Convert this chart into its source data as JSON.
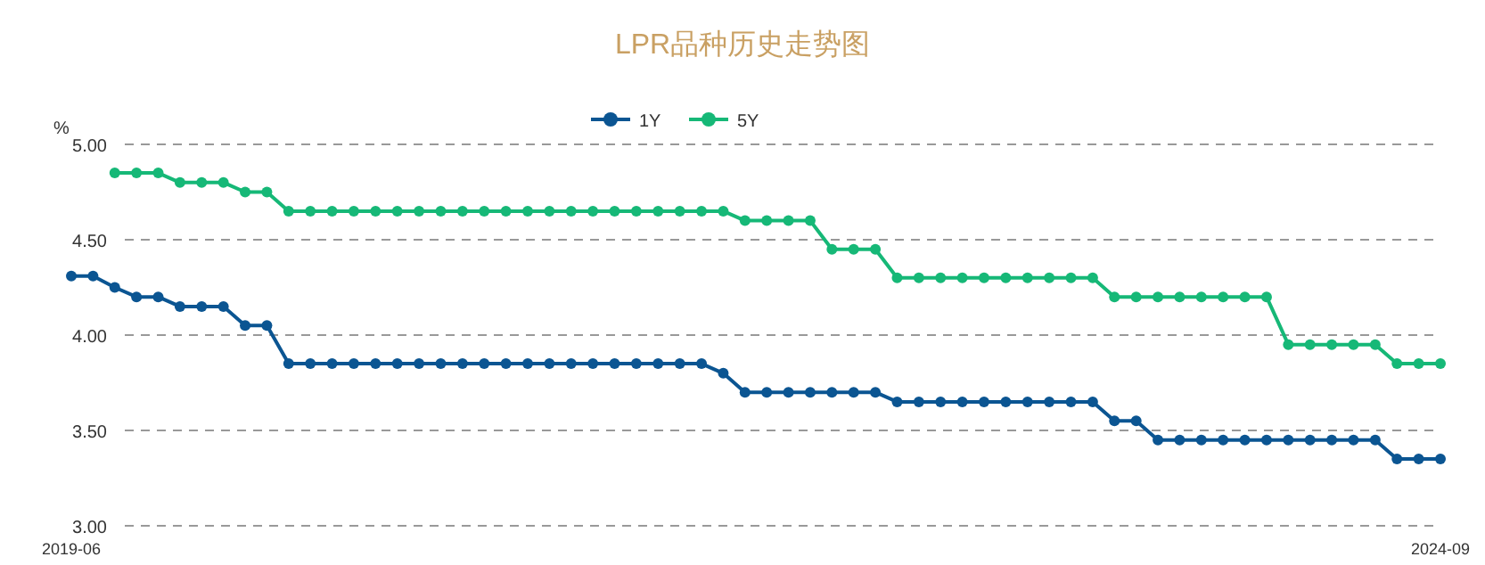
{
  "chart_data": {
    "type": "line",
    "title": "LPR品种历史走势图",
    "ylabel": "%",
    "x": [
      "2019-06",
      "2019-07",
      "2019-08",
      "2019-09",
      "2019-10",
      "2019-11",
      "2019-12",
      "2020-01",
      "2020-02",
      "2020-03",
      "2020-04",
      "2020-05",
      "2020-06",
      "2020-07",
      "2020-08",
      "2020-09",
      "2020-10",
      "2020-11",
      "2020-12",
      "2021-01",
      "2021-02",
      "2021-03",
      "2021-04",
      "2021-05",
      "2021-06",
      "2021-07",
      "2021-08",
      "2021-09",
      "2021-10",
      "2021-11",
      "2021-12",
      "2022-01",
      "2022-02",
      "2022-03",
      "2022-04",
      "2022-05",
      "2022-06",
      "2022-07",
      "2022-08",
      "2022-09",
      "2022-10",
      "2022-11",
      "2022-12",
      "2023-01",
      "2023-02",
      "2023-03",
      "2023-04",
      "2023-05",
      "2023-06",
      "2023-07",
      "2023-08",
      "2023-09",
      "2023-10",
      "2023-11",
      "2023-12",
      "2024-01",
      "2024-02",
      "2024-03",
      "2024-04",
      "2024-05",
      "2024-06",
      "2024-07",
      "2024-08",
      "2024-09"
    ],
    "series": [
      {
        "name": "1Y",
        "color": "#0b5592",
        "values": [
          4.31,
          4.31,
          4.25,
          4.2,
          4.2,
          4.15,
          4.15,
          4.15,
          4.05,
          4.05,
          3.85,
          3.85,
          3.85,
          3.85,
          3.85,
          3.85,
          3.85,
          3.85,
          3.85,
          3.85,
          3.85,
          3.85,
          3.85,
          3.85,
          3.85,
          3.85,
          3.85,
          3.85,
          3.85,
          3.85,
          3.8,
          3.7,
          3.7,
          3.7,
          3.7,
          3.7,
          3.7,
          3.7,
          3.65,
          3.65,
          3.65,
          3.65,
          3.65,
          3.65,
          3.65,
          3.65,
          3.65,
          3.65,
          3.55,
          3.55,
          3.45,
          3.45,
          3.45,
          3.45,
          3.45,
          3.45,
          3.45,
          3.45,
          3.45,
          3.45,
          3.45,
          3.35,
          3.35,
          3.35
        ]
      },
      {
        "name": "5Y",
        "color": "#16b877",
        "values": [
          null,
          null,
          4.85,
          4.85,
          4.85,
          4.8,
          4.8,
          4.8,
          4.75,
          4.75,
          4.65,
          4.65,
          4.65,
          4.65,
          4.65,
          4.65,
          4.65,
          4.65,
          4.65,
          4.65,
          4.65,
          4.65,
          4.65,
          4.65,
          4.65,
          4.65,
          4.65,
          4.65,
          4.65,
          4.65,
          4.65,
          4.6,
          4.6,
          4.6,
          4.6,
          4.45,
          4.45,
          4.45,
          4.3,
          4.3,
          4.3,
          4.3,
          4.3,
          4.3,
          4.3,
          4.3,
          4.3,
          4.3,
          4.2,
          4.2,
          4.2,
          4.2,
          4.2,
          4.2,
          4.2,
          4.2,
          3.95,
          3.95,
          3.95,
          3.95,
          3.95,
          3.85,
          3.85,
          3.85
        ]
      }
    ],
    "xlim": [
      "2019-06",
      "2024-09"
    ],
    "xticks": [
      "2019-06",
      "2024-09"
    ],
    "ylim": [
      3,
      5
    ],
    "yticks": [
      {
        "value": 3,
        "label": "3.00"
      },
      {
        "value": 3.5,
        "label": "3.50"
      },
      {
        "value": 4,
        "label": "4.00"
      },
      {
        "value": 4.5,
        "label": "4.50"
      },
      {
        "value": 5,
        "label": "5.00"
      }
    ],
    "grid": "y",
    "legend": "top",
    "marker": "circle",
    "line_style": "solid"
  }
}
